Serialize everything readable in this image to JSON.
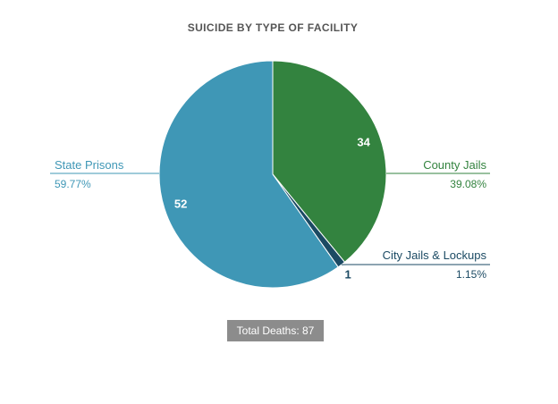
{
  "chart_data": {
    "type": "pie",
    "title": "SUICIDE BY TYPE OF FACILITY",
    "slices": [
      {
        "label": "County Jails",
        "value": 34,
        "percent": "39.08%",
        "color": "#33833f"
      },
      {
        "label": "City Jails & Lockups",
        "value": 1,
        "percent": "1.15%",
        "color": "#1b4a63"
      },
      {
        "label": "State Prisons",
        "value": 52,
        "percent": "59.77%",
        "color": "#3f97b6"
      }
    ],
    "total_label": "Total Deaths: 87",
    "start_angle_deg": 0,
    "direction": "clockwise"
  }
}
